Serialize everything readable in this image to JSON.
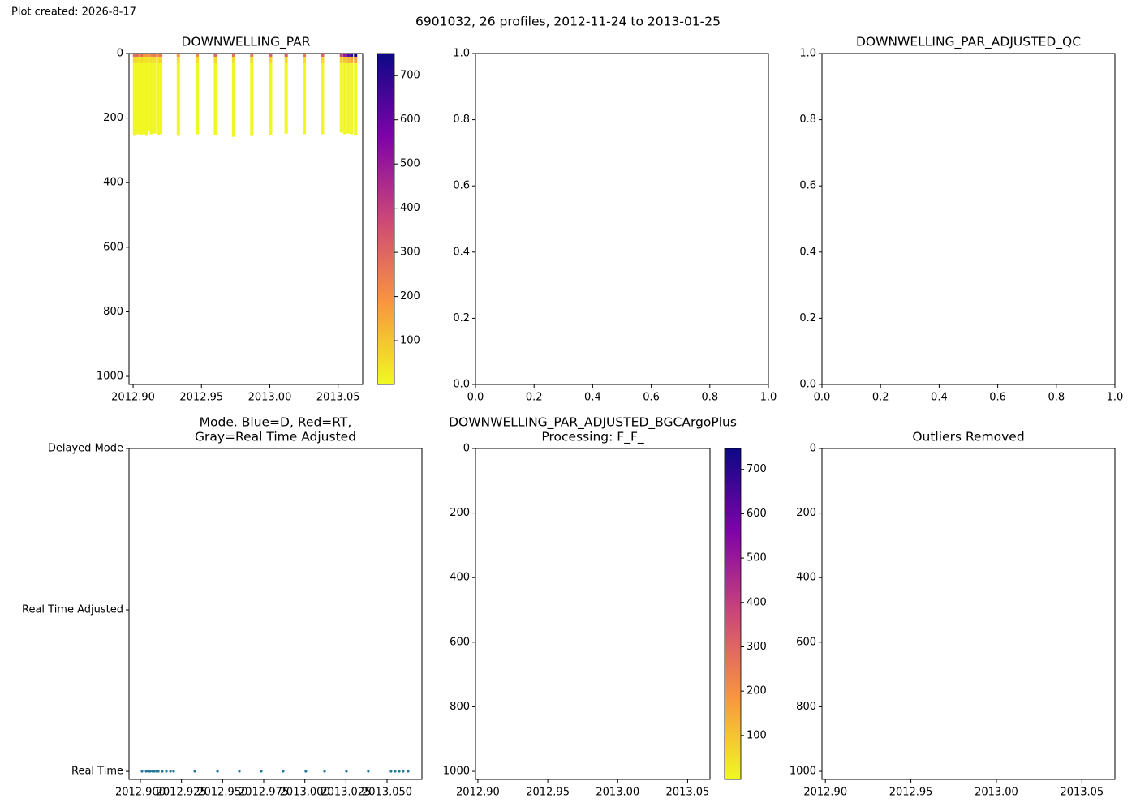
{
  "header": {
    "created": "Plot created: 2026-8-17",
    "title": "6901032, 26 profiles, 2012-11-24 to 2013-01-25"
  },
  "chart_data": [
    {
      "type": "profiles",
      "title": [
        "DOWNWELLING_PAR"
      ],
      "colormap": "plasma_r",
      "x": [
        2012.901,
        2012.9035,
        2012.9049,
        2012.9059,
        2012.9074,
        2012.9084,
        2012.9099,
        2012.9109,
        2012.9133,
        2012.9158,
        2012.9183,
        2012.9202,
        2012.9331,
        2012.9469,
        2012.9602,
        2012.9735,
        2012.9868,
        2013.0006,
        2013.012,
        2013.0253,
        2013.0386,
        2013.0524,
        2013.0549,
        2013.0574,
        2013.0598,
        2013.0628
      ],
      "depth": [
        0,
        10,
        30
      ],
      "max_depth": [
        255,
        250,
        248,
        252,
        245,
        250,
        255,
        240,
        250,
        248,
        252,
        250,
        255,
        250,
        252,
        258,
        255,
        252,
        248,
        250,
        250,
        245,
        250,
        248,
        250,
        252
      ],
      "par": [
        [
          280,
          60,
          5
        ],
        [
          300,
          50,
          5
        ],
        [
          200,
          40,
          5
        ],
        [
          250,
          50,
          5
        ],
        [
          300,
          60,
          5
        ],
        [
          150,
          40,
          5
        ],
        [
          200,
          40,
          5
        ],
        [
          180,
          40,
          5
        ],
        [
          220,
          50,
          5
        ],
        [
          260,
          50,
          5
        ],
        [
          200,
          40,
          5
        ],
        [
          250,
          60,
          5
        ],
        [
          180,
          40,
          5
        ],
        [
          220,
          50,
          5
        ],
        [
          300,
          60,
          5
        ],
        [
          280,
          50,
          5
        ],
        [
          250,
          50,
          5
        ],
        [
          300,
          60,
          5
        ],
        [
          320,
          60,
          5
        ],
        [
          260,
          50,
          5
        ],
        [
          300,
          60,
          5
        ],
        [
          400,
          80,
          5
        ],
        [
          500,
          100,
          5
        ],
        [
          600,
          120,
          5
        ],
        [
          700,
          150,
          5
        ],
        [
          740,
          160,
          5
        ]
      ],
      "xlim": [
        2012.897,
        2013.068
      ],
      "xticks": [
        {
          "value": 2012.9,
          "label": "2012.90"
        },
        {
          "value": 2012.95,
          "label": "2012.95"
        },
        {
          "value": 2013.0,
          "label": "2013.00"
        },
        {
          "value": 2013.05,
          "label": "2013.05"
        }
      ],
      "ylim": [
        1025,
        0
      ],
      "yticks": [
        0,
        200,
        400,
        600,
        800,
        1000
      ],
      "clim": [
        1,
        750
      ],
      "cticks": [
        100,
        200,
        300,
        400,
        500,
        600,
        700
      ]
    },
    {
      "type": "empty",
      "xlim": [
        0,
        1
      ],
      "xticks": [
        {
          "value": 0,
          "label": "0.0"
        },
        {
          "value": 0.2,
          "label": "0.2"
        },
        {
          "value": 0.4,
          "label": "0.4"
        },
        {
          "value": 0.6,
          "label": "0.6"
        },
        {
          "value": 0.8,
          "label": "0.8"
        },
        {
          "value": 1,
          "label": "1.0"
        }
      ],
      "ylim": [
        0,
        1
      ],
      "yticks": [
        {
          "value": 0,
          "label": "0.0"
        },
        {
          "value": 0.2,
          "label": "0.2"
        },
        {
          "value": 0.4,
          "label": "0.4"
        },
        {
          "value": 0.6,
          "label": "0.6"
        },
        {
          "value": 0.8,
          "label": "0.8"
        },
        {
          "value": 1,
          "label": "1.0"
        }
      ]
    },
    {
      "type": "empty",
      "title": [
        "DOWNWELLING_PAR_ADJUSTED_QC"
      ],
      "xlim": [
        0,
        1
      ],
      "xticks": [
        {
          "value": 0,
          "label": "0.0"
        },
        {
          "value": 0.2,
          "label": "0.2"
        },
        {
          "value": 0.4,
          "label": "0.4"
        },
        {
          "value": 0.6,
          "label": "0.6"
        },
        {
          "value": 0.8,
          "label": "0.8"
        },
        {
          "value": 1,
          "label": "1.0"
        }
      ],
      "ylim": [
        0,
        1
      ],
      "yticks": [
        {
          "value": 0,
          "label": "0.0"
        },
        {
          "value": 0.2,
          "label": "0.2"
        },
        {
          "value": 0.4,
          "label": "0.4"
        },
        {
          "value": 0.6,
          "label": "0.6"
        },
        {
          "value": 0.8,
          "label": "0.8"
        },
        {
          "value": 1,
          "label": "1.0"
        }
      ]
    },
    {
      "type": "scatter",
      "title": [
        "Mode. Blue=D, Red=RT,",
        "Gray=Real Time Adjusted"
      ],
      "color": "#23799a",
      "x": [
        2012.901,
        2012.9035,
        2012.9049,
        2012.9059,
        2012.9074,
        2012.9084,
        2012.9099,
        2012.9109,
        2012.9133,
        2012.9158,
        2012.9183,
        2012.9202,
        2012.9331,
        2012.9469,
        2012.9602,
        2012.9735,
        2012.9868,
        2013.0006,
        2013.012,
        2013.0253,
        2013.0386,
        2013.0524,
        2013.0549,
        2013.0574,
        2013.0598,
        2013.0628
      ],
      "values": [
        0,
        0,
        0,
        0,
        0,
        0,
        0,
        0,
        0,
        0,
        0,
        0,
        0,
        0,
        0,
        0,
        0,
        0,
        0,
        0,
        0,
        0,
        0,
        0,
        0,
        0
      ],
      "xlim": [
        2012.8931,
        2013.0712
      ],
      "xticks": [
        {
          "value": 2012.9,
          "label": "2012.900"
        },
        {
          "value": 2012.925,
          "label": "2012.925"
        },
        {
          "value": 2012.95,
          "label": "2012.950"
        },
        {
          "value": 2012.975,
          "label": "2012.975"
        },
        {
          "value": 2013.0,
          "label": "2013.000"
        },
        {
          "value": 2013.025,
          "label": "2013.025"
        },
        {
          "value": 2013.05,
          "label": "2013.050"
        }
      ],
      "ylim": [
        -0.05,
        2
      ],
      "yticks": [
        {
          "value": 0,
          "label": "Real Time"
        },
        {
          "value": 1,
          "label": "Real Time Adjusted"
        },
        {
          "value": 2,
          "label": "Delayed Mode"
        }
      ]
    },
    {
      "type": "empty",
      "title": [
        "DOWNWELLING_PAR_ADJUSTED_BGCArgoPlus",
        "Processing: F_F_"
      ],
      "colormap": "plasma_r",
      "xlim": [
        2012.8983,
        2013.066
      ],
      "xticks": [
        {
          "value": 2012.9,
          "label": "2012.90"
        },
        {
          "value": 2012.95,
          "label": "2012.95"
        },
        {
          "value": 2013.0,
          "label": "2013.00"
        },
        {
          "value": 2013.05,
          "label": "2013.05"
        }
      ],
      "ylim": [
        1025,
        0
      ],
      "yticks": [
        0,
        200,
        400,
        600,
        800,
        1000
      ],
      "clim": [
        1,
        747
      ],
      "cticks": [
        100,
        200,
        300,
        400,
        500,
        600,
        700
      ]
    },
    {
      "type": "empty",
      "title": [
        "Outliers Removed"
      ],
      "xlim": [
        2012.898,
        2013.0693
      ],
      "xticks": [
        {
          "value": 2012.9,
          "label": "2012.90"
        },
        {
          "value": 2012.95,
          "label": "2012.95"
        },
        {
          "value": 2013.0,
          "label": "2013.00"
        },
        {
          "value": 2013.05,
          "label": "2013.05"
        }
      ],
      "ylim": [
        1025,
        0
      ],
      "yticks": [
        0,
        200,
        400,
        600,
        800,
        1000
      ]
    }
  ]
}
